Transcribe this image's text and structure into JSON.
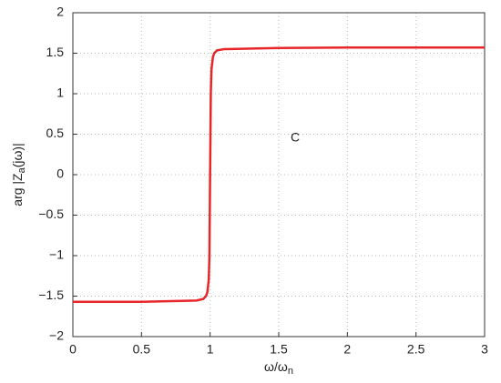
{
  "chart_data": {
    "type": "line",
    "xlabel": {
      "main": "ω/ω",
      "sub": "n"
    },
    "ylabel": {
      "main": "arg |Z",
      "sub": "a",
      "rest": "(jω)|"
    },
    "annotation": "C",
    "x": [
      0,
      0.5,
      0.9,
      0.95,
      0.97,
      0.98,
      0.99,
      0.995,
      1.0,
      1.005,
      1.01,
      1.02,
      1.03,
      1.05,
      1.1,
      1.5,
      2,
      2.5,
      3
    ],
    "series": [
      {
        "name": "arg Za",
        "color": "#e8262a",
        "values": [
          -1.57,
          -1.57,
          -1.555,
          -1.535,
          -1.5,
          -1.45,
          -1.3,
          -1.0,
          0,
          1.0,
          1.3,
          1.45,
          1.5,
          1.535,
          1.55,
          1.565,
          1.57,
          1.57,
          1.57
        ]
      }
    ],
    "xlim": [
      0,
      3
    ],
    "xticks": [
      0,
      0.5,
      1,
      1.5,
      2,
      2.5,
      3
    ],
    "ylim": [
      -2,
      2
    ],
    "yticks": [
      {
        "value": -2,
        "label": "−2"
      },
      {
        "value": -1.5,
        "label": "−1.5"
      },
      {
        "value": -1,
        "label": "−1"
      },
      {
        "value": -0.5,
        "label": "−0.5"
      },
      0,
      0.5,
      1,
      1.5,
      2
    ],
    "grid": true
  }
}
